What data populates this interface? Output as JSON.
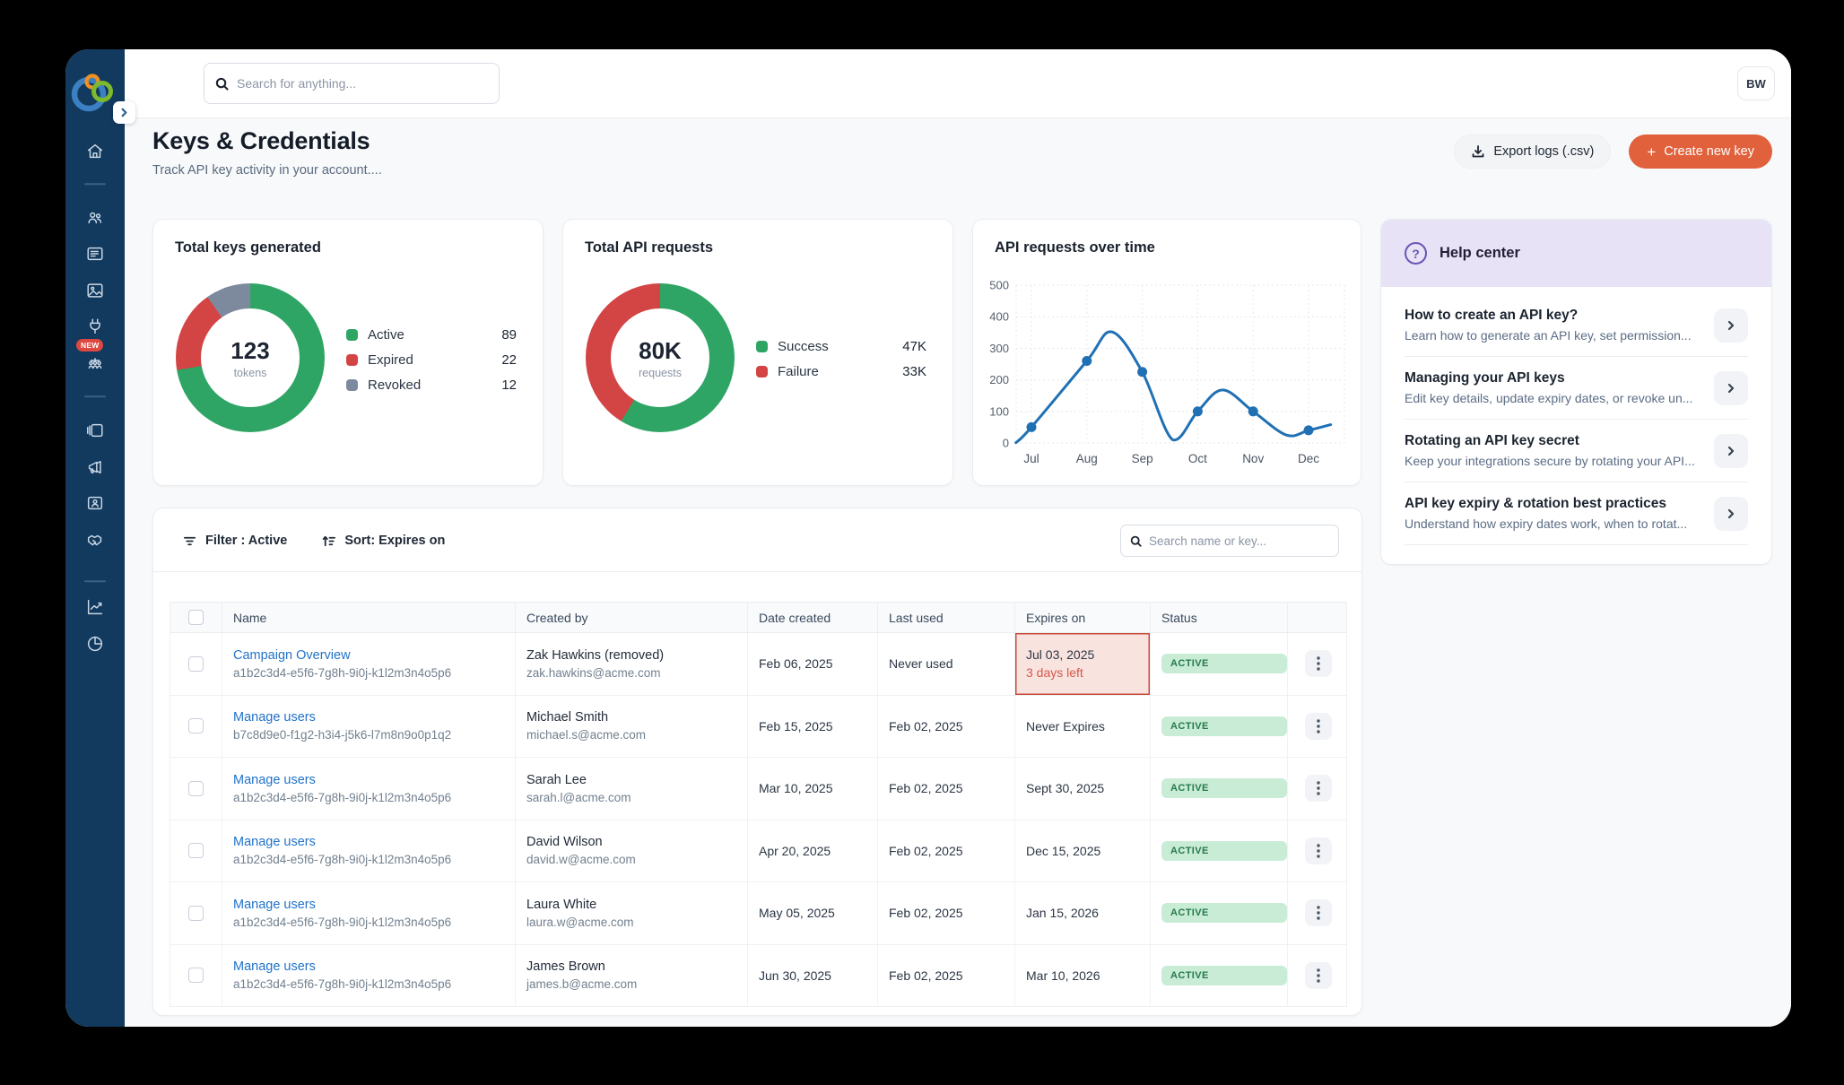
{
  "colors": {
    "sidebar_bg": "#12395e",
    "accent_orange": "#e0613c",
    "green": "#2fa565",
    "red": "#d34444",
    "gray_blue": "#7d8a9e",
    "line_blue": "#2070b4",
    "help_header_bg": "#e8e2f6",
    "help_purple": "#6a54b2",
    "warn_bg": "#f9e3df",
    "warn_border": "#c94b3d",
    "badge_bg": "#c9ecd6",
    "badge_text": "#257a4c",
    "link_blue": "#2273c9"
  },
  "sidebar": {
    "new_badge": "NEW",
    "items": [
      {
        "icon": "home-icon"
      },
      {
        "divider": true
      },
      {
        "icon": "team-icon"
      },
      {
        "icon": "list-icon"
      },
      {
        "icon": "image-icon"
      },
      {
        "icon": "plug-icon"
      },
      {
        "icon": "org-icon",
        "badge": "NEW"
      },
      {
        "divider": true
      },
      {
        "icon": "panels-icon"
      },
      {
        "icon": "megaphone-icon"
      },
      {
        "icon": "id-card-icon"
      },
      {
        "icon": "handshake-icon"
      },
      {
        "divider": true
      },
      {
        "icon": "line-chart-icon"
      },
      {
        "icon": "pie-chart-icon"
      }
    ]
  },
  "header": {
    "search_placeholder": "Search for anything...",
    "avatar_initials": "BW"
  },
  "page": {
    "title": "Keys & Credentials",
    "subtitle": "Track API key activity in your account....",
    "export_label": "Export logs (.csv)",
    "create_label": "Create new key"
  },
  "cards": {
    "keys": {
      "title": "Total keys generated",
      "center_value": "123",
      "center_label": "tokens",
      "legend": [
        {
          "label": "Active",
          "value": "89",
          "color": "#2fa565"
        },
        {
          "label": "Expired",
          "value": "22",
          "color": "#d34444"
        },
        {
          "label": "Revoked",
          "value": "12",
          "color": "#7d8a9e"
        }
      ]
    },
    "requests": {
      "title": "Total API requests",
      "center_value": "80K",
      "center_label": "requests",
      "legend": [
        {
          "label": "Success",
          "value": "47K",
          "color": "#2fa565"
        },
        {
          "label": "Failure",
          "value": "33K",
          "color": "#d34444"
        }
      ]
    }
  },
  "chart_data": [
    {
      "type": "pie",
      "title": "Total keys generated",
      "labels": [
        "Active",
        "Expired",
        "Revoked"
      ],
      "values": [
        89,
        22,
        12
      ],
      "colors": [
        "#2fa565",
        "#d34444",
        "#7d8a9e"
      ],
      "center_text": "123 tokens",
      "legend_position": "right"
    },
    {
      "type": "pie",
      "title": "Total API requests",
      "labels": [
        "Success",
        "Failure"
      ],
      "values": [
        47000,
        33000
      ],
      "colors": [
        "#2fa565",
        "#d34444"
      ],
      "center_text": "80K requests",
      "legend_position": "right"
    },
    {
      "type": "line",
      "title": "API requests over time",
      "x": [
        "Jul",
        "Aug",
        "Sep",
        "Oct",
        "Nov",
        "Dec"
      ],
      "values": [
        50,
        260,
        225,
        100,
        100,
        40
      ],
      "ylim": [
        0,
        500
      ],
      "yticks": [
        0,
        100,
        200,
        300,
        400,
        500
      ],
      "grid": true,
      "line_color": "#2070b4",
      "curve_shape": [
        [
          -0.28,
          0
        ],
        [
          0,
          50
        ],
        [
          1,
          260
        ],
        [
          1.45,
          352
        ],
        [
          2,
          225
        ],
        [
          2.55,
          10
        ],
        [
          3,
          100
        ],
        [
          3.45,
          168
        ],
        [
          4,
          100
        ],
        [
          4.6,
          25
        ],
        [
          5,
          40
        ],
        [
          5.4,
          58
        ]
      ]
    }
  ],
  "help": {
    "title": "Help center",
    "items": [
      {
        "title": "How to create an API key?",
        "desc": "Learn how to generate an API key, set permission..."
      },
      {
        "title": "Managing your API keys",
        "desc": "Edit key details, update expiry dates, or revoke un..."
      },
      {
        "title": "Rotating an API key secret",
        "desc": "Keep your integrations secure by rotating your API..."
      },
      {
        "title": "API key expiry & rotation best practices",
        "desc": "Understand how expiry dates work, when to rotat..."
      }
    ]
  },
  "table": {
    "filter_label": "Filter : Active",
    "sort_label": "Sort: Expires on",
    "search_placeholder": "Search name or key...",
    "columns": [
      "Name",
      "Created by",
      "Date created",
      "Last used",
      "Expires on",
      "Status"
    ],
    "rows": [
      {
        "name": "Campaign Overview",
        "key": "a1b2c3d4-e5f6-7g8h-9i0j-k1l2m3n4o5p6",
        "creator": "Zak Hawkins (removed)",
        "email": "zak.hawkins@acme.com",
        "date_created": "Feb 06, 2025",
        "last_used": "Never used",
        "expires": "Jul 03, 2025",
        "expires_note": "3 days left",
        "expires_warning": true,
        "status": "ACTIVE"
      },
      {
        "name": "Manage users",
        "key": "b7c8d9e0-f1g2-h3i4-j5k6-l7m8n9o0p1q2",
        "creator": "Michael Smith",
        "email": "michael.s@acme.com",
        "date_created": "Feb 15, 2025",
        "last_used": "Feb 02, 2025",
        "expires": "Never Expires",
        "expires_note": "",
        "expires_warning": false,
        "status": "ACTIVE"
      },
      {
        "name": "Manage users",
        "key": "a1b2c3d4-e5f6-7g8h-9i0j-k1l2m3n4o5p6",
        "creator": "Sarah Lee",
        "email": "sarah.l@acme.com",
        "date_created": "Mar 10, 2025",
        "last_used": "Feb 02, 2025",
        "expires": "Sept 30, 2025",
        "expires_note": "",
        "expires_warning": false,
        "status": "ACTIVE"
      },
      {
        "name": "Manage users",
        "key": "a1b2c3d4-e5f6-7g8h-9i0j-k1l2m3n4o5p6",
        "creator": "David Wilson",
        "email": "david.w@acme.com",
        "date_created": "Apr 20, 2025",
        "last_used": "Feb 02, 2025",
        "expires": "Dec 15, 2025",
        "expires_note": "",
        "expires_warning": false,
        "status": "ACTIVE"
      },
      {
        "name": "Manage users",
        "key": "a1b2c3d4-e5f6-7g8h-9i0j-k1l2m3n4o5p6",
        "creator": "Laura White",
        "email": "laura.w@acme.com",
        "date_created": "May 05, 2025",
        "last_used": "Feb 02, 2025",
        "expires": "Jan 15, 2026",
        "expires_note": "",
        "expires_warning": false,
        "status": "ACTIVE"
      },
      {
        "name": "Manage users",
        "key": "a1b2c3d4-e5f6-7g8h-9i0j-k1l2m3n4o5p6",
        "creator": "James Brown",
        "email": "james.b@acme.com",
        "date_created": "Jun 30, 2025",
        "last_used": "Feb 02, 2025",
        "expires": "Mar 10, 2026",
        "expires_note": "",
        "expires_warning": false,
        "status": "ACTIVE"
      }
    ]
  }
}
